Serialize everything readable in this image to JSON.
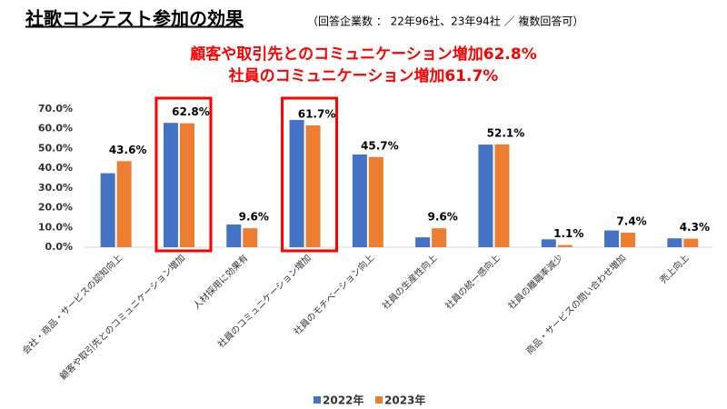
{
  "chart_data": {
    "type": "bar",
    "title": "社歌コンテスト参加の効果",
    "subtitle": "（回答企業数 ： 22年96社、23年94社 ／ 複数回答可）",
    "annotations": [
      "顧客や取引先とのコミュニケーション増加62.8%",
      "社員のコミュニケーション増加61.7%"
    ],
    "categories": [
      "会社・商品・サービスの認知向上",
      "顧客や取引先とのコミュニケーション増加",
      "人材採用に効果有",
      "社員のコミュニケーション増加",
      "社員のモチベーション向上",
      "社員の生産性向上",
      "社員の統一感向上",
      "社員の離職率減少",
      "商品・サービスの問い合わせ増加",
      "売上向上"
    ],
    "series": [
      {
        "name": "2022年",
        "color": "#4472c4",
        "values": [
          37.5,
          63.0,
          11.5,
          64.5,
          47.0,
          5.0,
          52.0,
          4.0,
          8.5,
          4.5
        ]
      },
      {
        "name": "2023年",
        "color": "#ed7d31",
        "values": [
          43.6,
          62.8,
          9.6,
          61.7,
          45.7,
          9.6,
          52.1,
          1.1,
          7.4,
          4.3
        ],
        "value_labels": [
          "43.6%",
          "62.8%",
          "9.6%",
          "61.7%",
          "45.7%",
          "9.6%",
          "52.1%",
          "1.1%",
          "7.4%",
          "4.3%"
        ]
      }
    ],
    "ylim": [
      0,
      70
    ],
    "yticks": [
      {
        "value": 0,
        "label": "0.0%"
      },
      {
        "value": 10,
        "label": "10.0%"
      },
      {
        "value": 20,
        "label": "20.0%"
      },
      {
        "value": 30,
        "label": "30.0%"
      },
      {
        "value": 40,
        "label": "40.0%"
      },
      {
        "value": 50,
        "label": "50.0%"
      },
      {
        "value": 60,
        "label": "60.0%"
      },
      {
        "value": 70,
        "label": "70.0%"
      }
    ],
    "grid": false,
    "legend": "bottom"
  }
}
